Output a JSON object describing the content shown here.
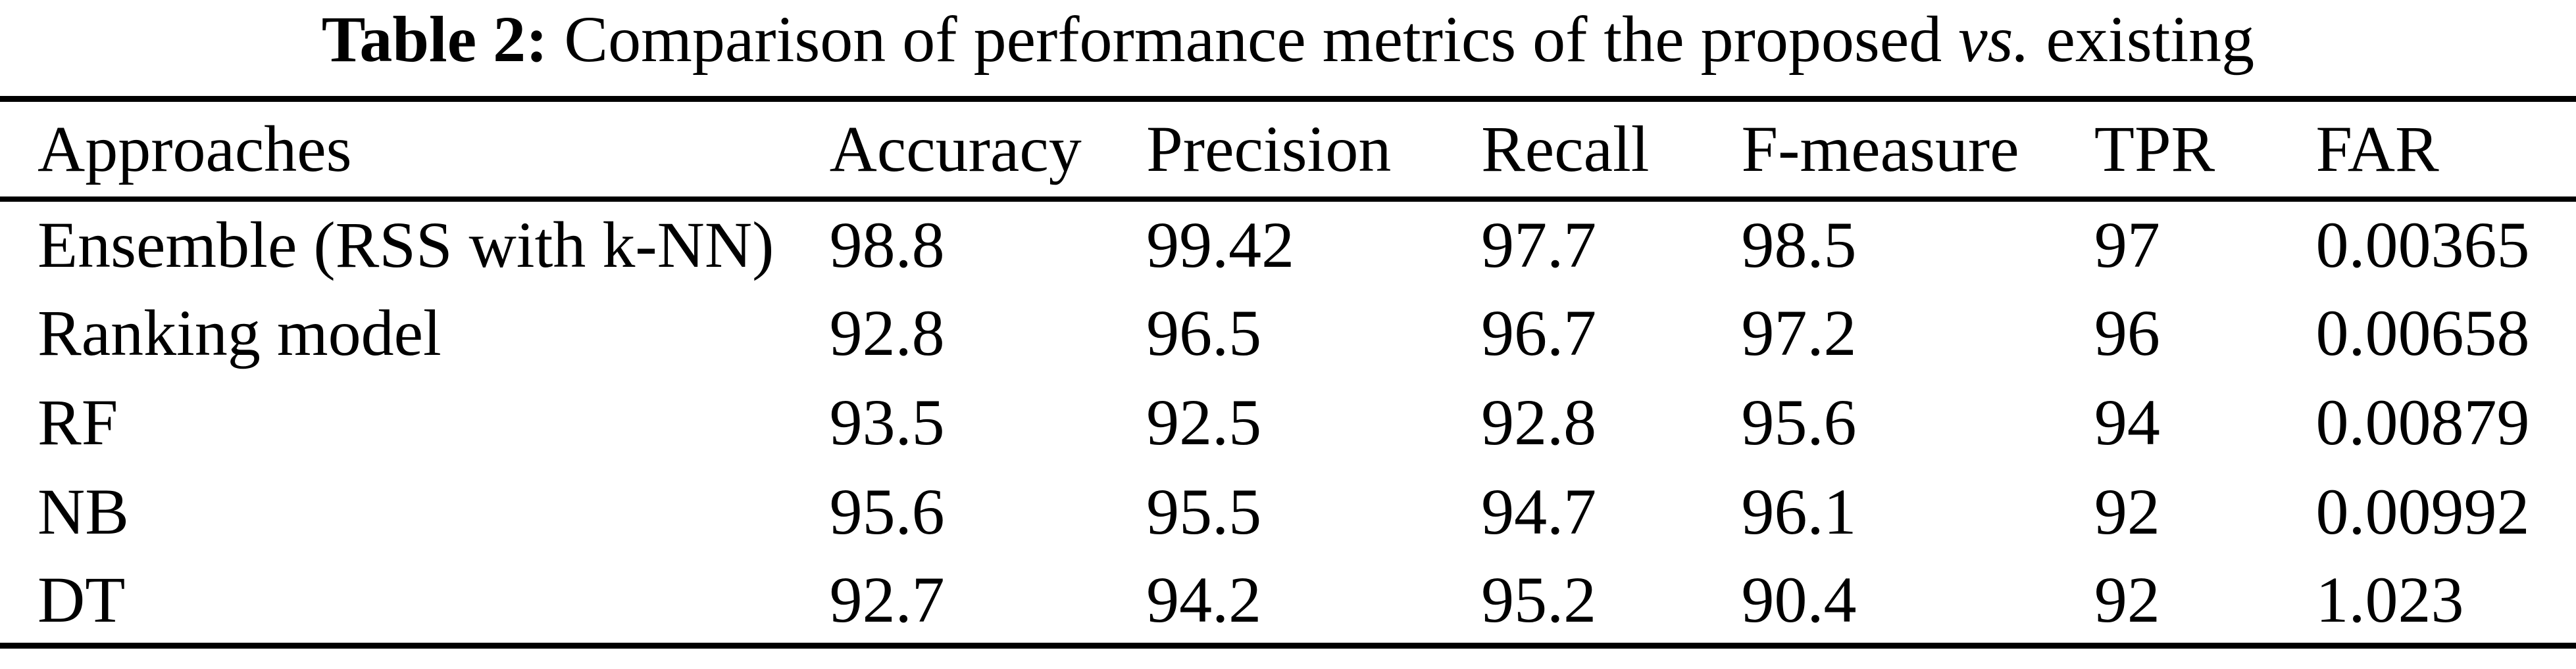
{
  "page": {
    "background_color": "#ffffff",
    "text_color": "#000000"
  },
  "caption": {
    "label": "Table 2:",
    "body_before_italic": "Comparison of performance metrics of the proposed",
    "italic_word": "vs.",
    "body_after_italic": "existing"
  },
  "table": {
    "columns": [
      "Approaches",
      "Accuracy",
      "Precision",
      "Recall",
      "F-measure",
      "TPR",
      "FAR"
    ],
    "rows": [
      [
        "Ensemble (RSS with k-NN)",
        "98.8",
        "99.42",
        "97.7",
        "98.5",
        "97",
        "0.00365"
      ],
      [
        "Ranking model",
        "92.8",
        "96.5",
        "96.7",
        "97.2",
        "96",
        "0.00658"
      ],
      [
        "RF",
        "93.5",
        "92.5",
        "92.8",
        "95.6",
        "94",
        "0.00879"
      ],
      [
        "NB",
        "95.6",
        "95.5",
        "94.7",
        "96.1",
        "92",
        "0.00992"
      ],
      [
        "DT",
        "92.7",
        "94.2",
        "95.2",
        "90.4",
        "92",
        "1.023"
      ]
    ]
  }
}
